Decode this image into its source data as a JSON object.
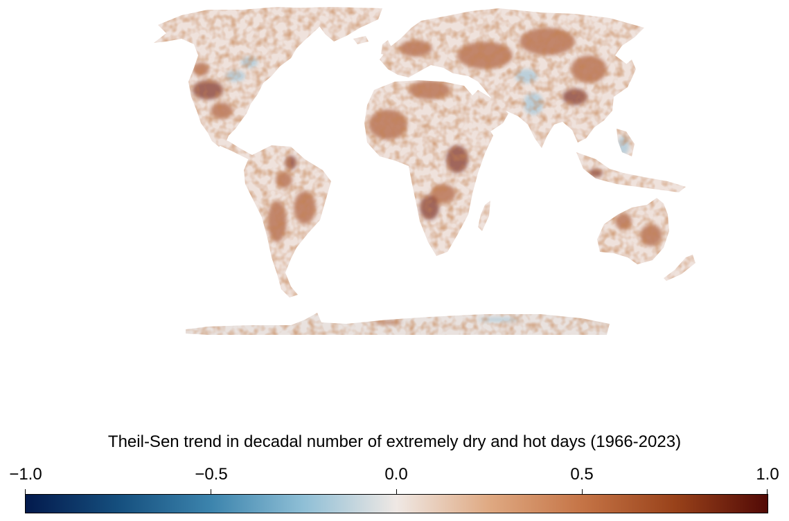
{
  "map": {
    "projection": "equirectangular",
    "background": "#ffffff",
    "land_base_color": "#efe2dc",
    "antarctica_color": "#e9e2df",
    "trend_positive_color": "#a34a1f",
    "trend_strong_positive_color": "#6b1406",
    "trend_negative_color": "#8fbfd9"
  },
  "colorbar": {
    "title": "Theil-Sen trend in decadal number of extremely dry and hot days (1966-2023)",
    "min": -1.0,
    "max": 1.0,
    "ticks": [
      {
        "value": -1.0,
        "label": "−1.0"
      },
      {
        "value": -0.5,
        "label": "−0.5"
      },
      {
        "value": 0.0,
        "label": "0.0"
      },
      {
        "value": 0.5,
        "label": "0.5"
      },
      {
        "value": 1.0,
        "label": "1.0"
      }
    ],
    "colormap_stops": [
      {
        "value": -1.0,
        "color": "#031a4d"
      },
      {
        "value": -0.75,
        "color": "#154f7e"
      },
      {
        "value": -0.5,
        "color": "#3c84ad"
      },
      {
        "value": -0.25,
        "color": "#8fbfd6"
      },
      {
        "value": 0.0,
        "color": "#efe8e4"
      },
      {
        "value": 0.25,
        "color": "#dfa982"
      },
      {
        "value": 0.5,
        "color": "#c57446"
      },
      {
        "value": 0.75,
        "color": "#99421a"
      },
      {
        "value": 1.0,
        "color": "#520a06"
      }
    ]
  }
}
